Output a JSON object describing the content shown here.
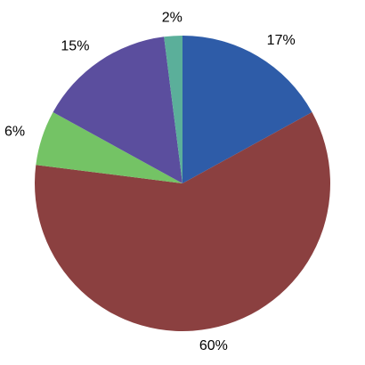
{
  "chart_data": {
    "type": "pie",
    "title": "",
    "legend": "none",
    "start_angle": "12 o'clock",
    "direction": "clockwise",
    "slices": [
      {
        "value": 17,
        "label": "17%",
        "color": "#2E5CA8"
      },
      {
        "value": 60,
        "label": "60%",
        "color": "#8B4040"
      },
      {
        "value": 6,
        "label": "6%",
        "color": "#74C365"
      },
      {
        "value": 15,
        "label": "15%",
        "color": "#5B4E9E"
      },
      {
        "value": 2,
        "label": "2%",
        "color": "#5BAF9A"
      }
    ]
  }
}
